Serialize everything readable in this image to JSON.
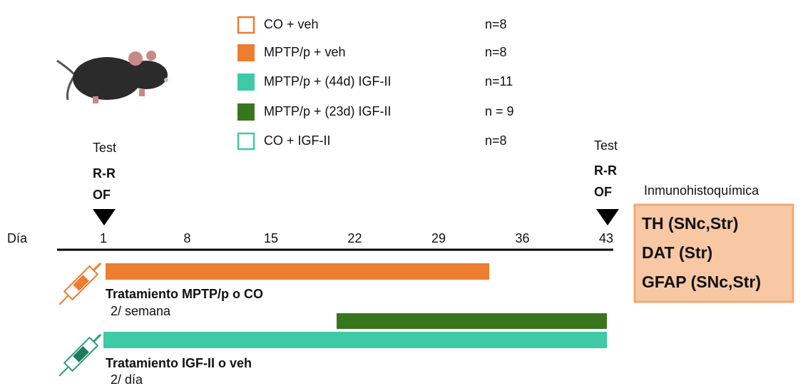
{
  "legend": [
    {
      "label": "CO + veh",
      "n": "n=8"
    },
    {
      "label": "MPTP/p + veh",
      "n": "n=8"
    },
    {
      "label": "MPTP/p + (44d) IGF-II",
      "n": "n=11"
    },
    {
      "label": "MPTP/p + (23d) IGF-II",
      "n": "n = 9"
    },
    {
      "label": "CO + IGF-II",
      "n": "n=8"
    }
  ],
  "test_start": {
    "title": "Test",
    "lines": [
      "R-R",
      "OF"
    ]
  },
  "test_end": {
    "title": "Test",
    "lines": [
      "R-R",
      "OF"
    ]
  },
  "timeline": {
    "label": "Día",
    "days": [
      "1",
      "8",
      "15",
      "22",
      "29",
      "36",
      "43"
    ]
  },
  "treatments": [
    {
      "title": "Tratamiento MPTP/p o CO",
      "frequency": "2/ semana"
    },
    {
      "title": "Tratamiento IGF-II  o veh",
      "frequency": "2/ día"
    }
  ],
  "immuno": {
    "title": "Inmunohistoquímica",
    "items": [
      "TH (SNc,Str)",
      "DAT (Str)",
      "GFAP (SNc,Str)"
    ]
  }
}
